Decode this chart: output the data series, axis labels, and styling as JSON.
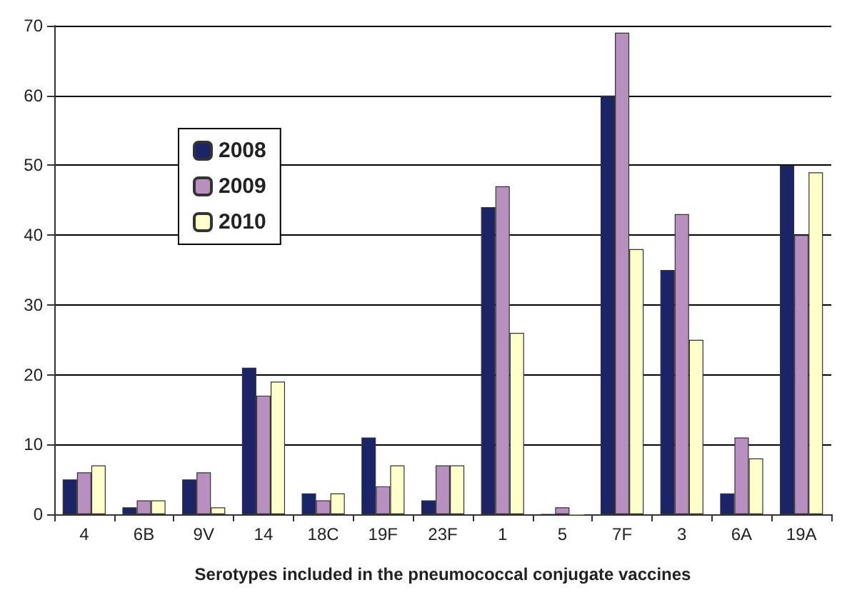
{
  "chart_data": {
    "type": "bar",
    "xlabel": "Serotypes included in the pneumococcal conjugate vaccines",
    "categories": [
      "4",
      "6B",
      "9V",
      "14",
      "18C",
      "19F",
      "23F",
      "1",
      "5",
      "7F",
      "3",
      "6A",
      "19A"
    ],
    "series": [
      {
        "name": "2008",
        "color": "#1a2466",
        "values": [
          5,
          1,
          5,
          21,
          3,
          11,
          2,
          44,
          0,
          60,
          35,
          3,
          50
        ]
      },
      {
        "name": "2009",
        "color": "#b890c0",
        "values": [
          6,
          2,
          6,
          17,
          2,
          4,
          7,
          47,
          1,
          69,
          43,
          11,
          40
        ]
      },
      {
        "name": "2010",
        "color": "#ffffcc",
        "values": [
          7,
          2,
          1,
          19,
          3,
          7,
          7,
          26,
          0,
          38,
          25,
          8,
          49
        ]
      }
    ],
    "ylim": [
      0,
      70
    ],
    "yticks": [
      0,
      10,
      20,
      30,
      40,
      50,
      60,
      70
    ],
    "grid": "y",
    "legend": "left"
  }
}
